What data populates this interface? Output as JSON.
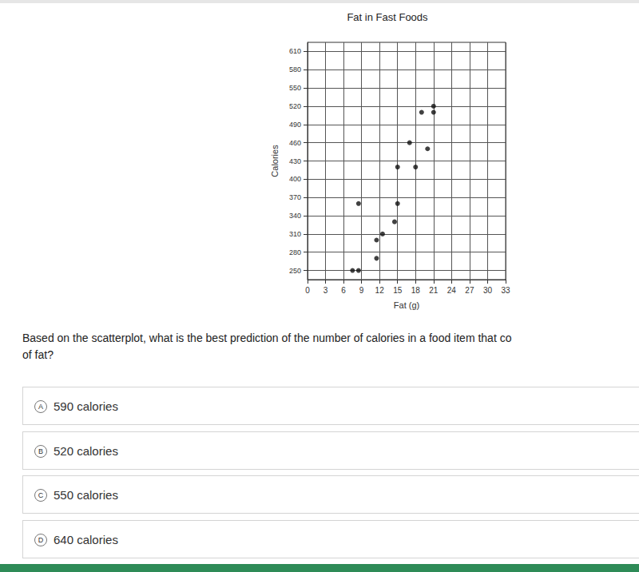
{
  "chart_data": {
    "type": "scatter",
    "title": "Fat in Fast Foods",
    "x_label": "Fat (g)",
    "y_label": "Calories",
    "x": [
      7.5,
      8.5,
      8.5,
      11.5,
      12.5,
      11.5,
      14.5,
      15,
      15,
      17,
      18,
      19,
      20,
      21,
      21
    ],
    "values": [
      250,
      250,
      360,
      300,
      310,
      270,
      330,
      360,
      420,
      460,
      420,
      510,
      450,
      520,
      510
    ],
    "color": "#111111",
    "marker": "circle",
    "xlim": [
      0,
      33
    ],
    "xticks": [
      0,
      3,
      6,
      9,
      12,
      15,
      18,
      21,
      24,
      27,
      30
    ],
    "ylim": [
      235,
      625
    ],
    "yticks": [
      250,
      280,
      310,
      340,
      370,
      400,
      430,
      460,
      490,
      520,
      550,
      580,
      610
    ],
    "grid": true
  },
  "question": [
    "Based on the scatterplot, what is the best prediction of the number of calories in a food item that co",
    "of fat?"
  ],
  "options": [
    {
      "letter": "A",
      "text": "590 calories"
    },
    {
      "letter": "B",
      "text": "520 calories"
    },
    {
      "letter": "C",
      "text": "550 calories"
    },
    {
      "letter": "D",
      "text": "640 calories"
    }
  ]
}
